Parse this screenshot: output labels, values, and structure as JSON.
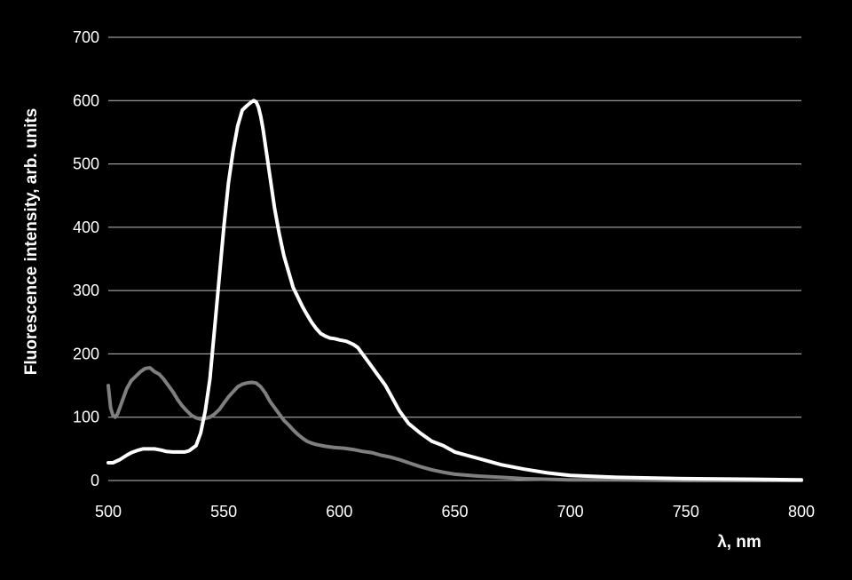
{
  "chart_data": {
    "type": "line",
    "title": "",
    "xlabel": "λ, nm",
    "ylabel": "Fluorescence intensity, arb. units",
    "xlim": [
      500,
      800
    ],
    "ylim": [
      0,
      700
    ],
    "xticks": [
      500,
      550,
      600,
      650,
      700,
      750,
      800
    ],
    "yticks": [
      0,
      100,
      200,
      300,
      400,
      500,
      600,
      700
    ],
    "grid": "horizontal",
    "legend": "none",
    "background": "#000000",
    "series": [
      {
        "name": "white-curve",
        "color": "#ffffff",
        "x": [
          500,
          502,
          505,
          508,
          510,
          513,
          515,
          518,
          520,
          523,
          525,
          528,
          530,
          533,
          535,
          538,
          540,
          542,
          544,
          546,
          548,
          550,
          552,
          554,
          556,
          558,
          560,
          562,
          563,
          564,
          565,
          566,
          567,
          568,
          570,
          572,
          574,
          576,
          578,
          580,
          582,
          584,
          586,
          588,
          590,
          592,
          594,
          596,
          598,
          600,
          603,
          606,
          608,
          610,
          613,
          616,
          620,
          623,
          626,
          630,
          635,
          640,
          645,
          650,
          655,
          660,
          665,
          670,
          680,
          690,
          700,
          720,
          750,
          780,
          800
        ],
        "y": [
          28,
          28,
          33,
          40,
          44,
          48,
          50,
          50,
          50,
          48,
          46,
          45,
          45,
          45,
          47,
          55,
          75,
          110,
          160,
          240,
          320,
          400,
          470,
          520,
          560,
          585,
          592,
          598,
          600,
          598,
          590,
          575,
          555,
          530,
          480,
          430,
          390,
          355,
          330,
          305,
          290,
          275,
          262,
          250,
          240,
          232,
          228,
          225,
          224,
          222,
          220,
          215,
          210,
          200,
          185,
          170,
          150,
          130,
          110,
          90,
          75,
          62,
          55,
          45,
          40,
          35,
          30,
          25,
          18,
          12,
          8,
          5,
          3,
          2,
          1
        ]
      },
      {
        "name": "gray-curve",
        "color": "#7f7f7f",
        "x": [
          500,
          501,
          502,
          503,
          504,
          506,
          508,
          510,
          512,
          514,
          516,
          518,
          520,
          522,
          524,
          526,
          528,
          530,
          532,
          534,
          536,
          538,
          540,
          542,
          544,
          546,
          548,
          550,
          552,
          554,
          556,
          558,
          560,
          562,
          564,
          566,
          568,
          570,
          572,
          574,
          576,
          578,
          580,
          582,
          584,
          586,
          588,
          590,
          594,
          598,
          602,
          606,
          610,
          614,
          618,
          622,
          626,
          630,
          635,
          640,
          645,
          650,
          660,
          670,
          680,
          690,
          700,
          720,
          750,
          780,
          800
        ],
        "y": [
          150,
          115,
          103,
          100,
          105,
          125,
          145,
          158,
          165,
          172,
          177,
          178,
          172,
          168,
          160,
          150,
          140,
          128,
          118,
          110,
          103,
          99,
          97,
          98,
          100,
          105,
          112,
          122,
          132,
          140,
          148,
          152,
          154,
          155,
          154,
          148,
          138,
          125,
          115,
          105,
          95,
          88,
          80,
          73,
          67,
          62,
          59,
          57,
          54,
          52,
          51,
          49,
          46,
          44,
          40,
          37,
          33,
          28,
          22,
          17,
          13,
          10,
          7,
          5,
          3,
          2,
          1,
          1,
          0,
          0,
          0
        ]
      }
    ]
  }
}
